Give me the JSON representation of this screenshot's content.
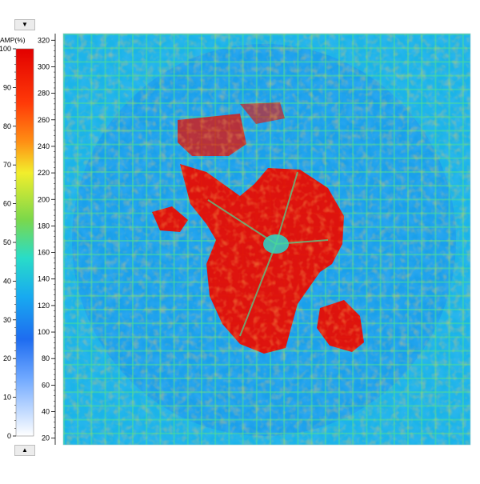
{
  "chart_data": {
    "type": "heatmap",
    "title": "",
    "colorbar": {
      "label": "AMP(%)",
      "min": 0,
      "max": 100,
      "ticks": [
        0,
        10,
        20,
        30,
        40,
        50,
        60,
        70,
        80,
        90,
        100
      ],
      "stops": [
        {
          "v": 0,
          "color": "#ffffff"
        },
        {
          "v": 15,
          "color": "#6fa8ff"
        },
        {
          "v": 25,
          "color": "#1e6cf0"
        },
        {
          "v": 36,
          "color": "#18aaf0"
        },
        {
          "v": 46,
          "color": "#29dcc8"
        },
        {
          "v": 56,
          "color": "#7cd84a"
        },
        {
          "v": 68,
          "color": "#f2ee2c"
        },
        {
          "v": 76,
          "color": "#ff8f14"
        },
        {
          "v": 86,
          "color": "#ff3a08"
        },
        {
          "v": 100,
          "color": "#e20000"
        }
      ]
    },
    "y_axis": {
      "ylim": [
        15,
        325
      ],
      "ticks": [
        20,
        40,
        60,
        80,
        100,
        120,
        140,
        160,
        180,
        200,
        220,
        240,
        260,
        280,
        300,
        320
      ]
    },
    "description_values": {
      "background_level": 38,
      "grid_line_level": 50,
      "defect_level": 97
    }
  },
  "controls": {
    "scroll_up_glyph": "▼",
    "scroll_down_glyph": "▲"
  }
}
